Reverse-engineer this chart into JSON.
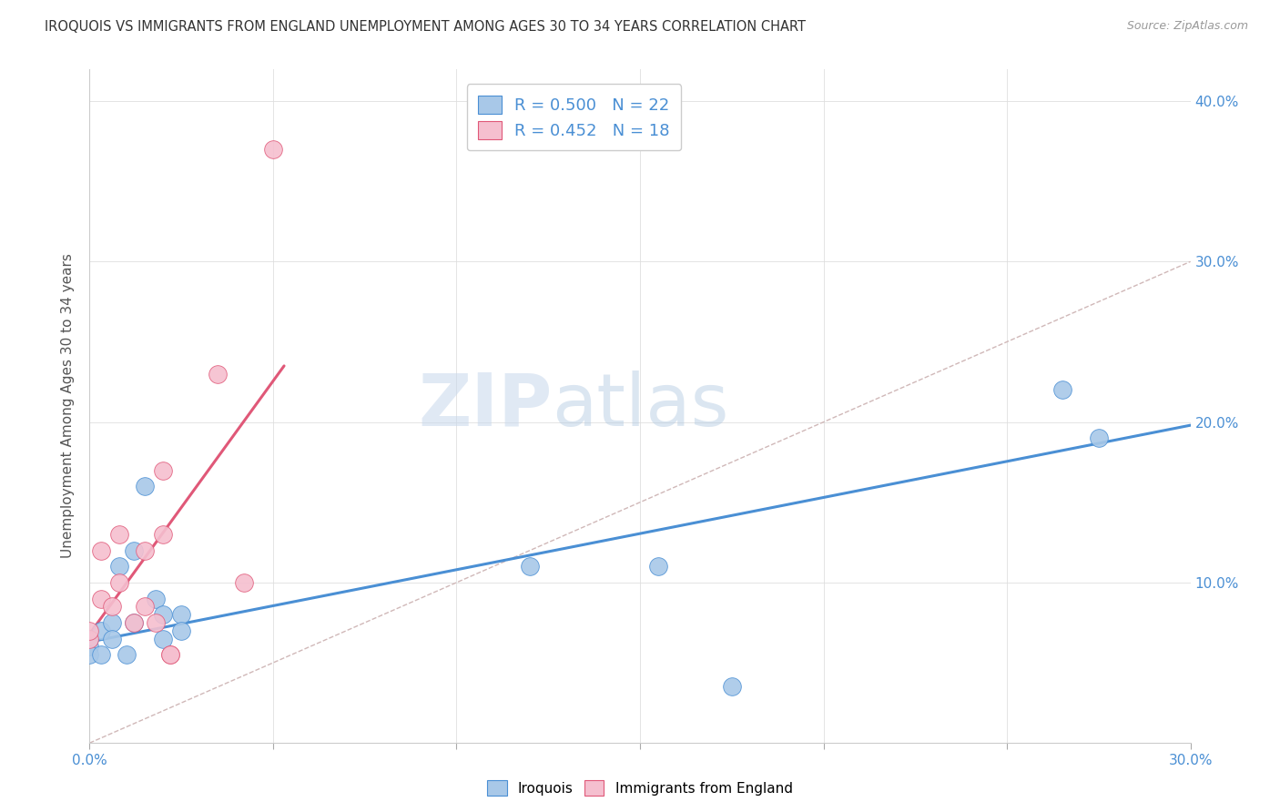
{
  "title": "IROQUOIS VS IMMIGRANTS FROM ENGLAND UNEMPLOYMENT AMONG AGES 30 TO 34 YEARS CORRELATION CHART",
  "source": "Source: ZipAtlas.com",
  "ylabel": "Unemployment Among Ages 30 to 34 years",
  "xlim": [
    0.0,
    0.3
  ],
  "ylim": [
    0.0,
    0.42
  ],
  "blue_R": 0.5,
  "blue_N": 22,
  "pink_R": 0.452,
  "pink_N": 18,
  "blue_color": "#a8c8e8",
  "pink_color": "#f5bfcf",
  "blue_line_color": "#4a8fd4",
  "pink_line_color": "#e05878",
  "ref_line_color": "#d0b8b8",
  "watermark_zip": "ZIP",
  "watermark_atlas": "atlas",
  "blue_points_x": [
    0.0,
    0.0,
    0.0,
    0.003,
    0.003,
    0.006,
    0.006,
    0.008,
    0.01,
    0.012,
    0.012,
    0.015,
    0.018,
    0.02,
    0.02,
    0.025,
    0.025,
    0.12,
    0.155,
    0.175,
    0.265,
    0.275
  ],
  "blue_points_y": [
    0.065,
    0.06,
    0.055,
    0.07,
    0.055,
    0.075,
    0.065,
    0.11,
    0.055,
    0.075,
    0.12,
    0.16,
    0.09,
    0.08,
    0.065,
    0.08,
    0.07,
    0.11,
    0.11,
    0.035,
    0.22,
    0.19
  ],
  "pink_points_x": [
    0.0,
    0.0,
    0.003,
    0.003,
    0.006,
    0.008,
    0.008,
    0.012,
    0.015,
    0.015,
    0.018,
    0.02,
    0.02,
    0.022,
    0.022,
    0.035,
    0.042,
    0.05
  ],
  "pink_points_y": [
    0.065,
    0.07,
    0.12,
    0.09,
    0.085,
    0.1,
    0.13,
    0.075,
    0.085,
    0.12,
    0.075,
    0.13,
    0.17,
    0.055,
    0.055,
    0.23,
    0.1,
    0.37
  ],
  "blue_trend_x": [
    0.0,
    0.3
  ],
  "blue_trend_y": [
    0.063,
    0.198
  ],
  "pink_trend_x": [
    0.0,
    0.053
  ],
  "pink_trend_y": [
    0.068,
    0.235
  ],
  "ref_line_x": [
    0.0,
    0.3
  ],
  "ref_line_y": [
    0.0,
    0.3
  ]
}
